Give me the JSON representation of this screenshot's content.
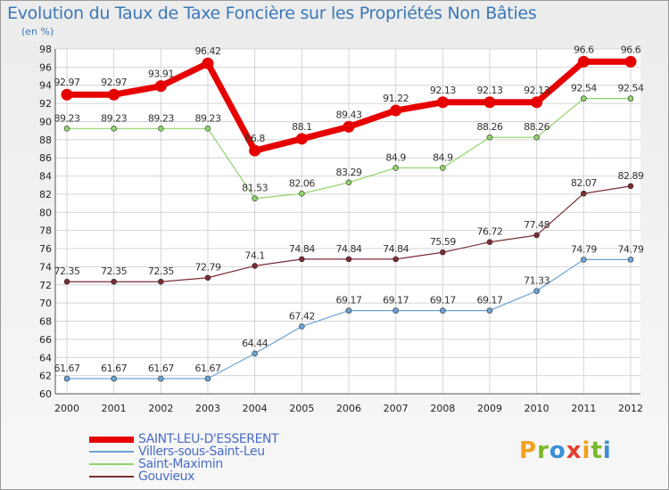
{
  "title": "Evolution du Taux de Taxe Foncière sur les Propriétés Non Bâties",
  "unit_label": "(en %)",
  "logo": {
    "letters": [
      "P",
      "r",
      "o",
      "x",
      "i",
      "t",
      "i"
    ],
    "colors": [
      "#f0a11d",
      "#79b829",
      "#3a8fd6",
      "#e63b2e",
      "#f0a11d",
      "#79b829",
      "#3a8fd6"
    ]
  },
  "chart_data": {
    "type": "line",
    "title": "Evolution du Taux de Taxe Foncière sur les Propriétés Non Bâties",
    "ylabel": "(en %)",
    "xlabel": "",
    "ylim": [
      60,
      98
    ],
    "yticks": [
      60,
      62,
      64,
      66,
      68,
      70,
      72,
      74,
      76,
      78,
      80,
      82,
      84,
      86,
      88,
      90,
      92,
      94,
      96,
      98
    ],
    "categories": [
      "2000",
      "2001",
      "2002",
      "2003",
      "2004",
      "2005",
      "2006",
      "2007",
      "2008",
      "2009",
      "2010",
      "2011",
      "2012"
    ],
    "grid": true,
    "legend_position": "bottom-left",
    "series": [
      {
        "name": "SAINT-LEU-D'ESSERENT",
        "color": "#e60000",
        "values": [
          92.97,
          92.97,
          93.91,
          96.42,
          86.8,
          88.1,
          89.43,
          91.22,
          92.13,
          92.13,
          92.13,
          96.6,
          96.6
        ],
        "labels": [
          "92.97",
          "92.97",
          "93.91",
          "96.42",
          "86.8",
          "88.1",
          "89.43",
          "91.22",
          "92.13",
          "92.13",
          "92.13",
          "96.6",
          "96.6"
        ]
      },
      {
        "name": "Villers-sous-Saint-Leu",
        "color": "#6aa3d5",
        "values": [
          61.67,
          61.67,
          61.67,
          61.67,
          64.44,
          67.42,
          69.17,
          69.17,
          69.17,
          69.17,
          71.33,
          74.79,
          74.79
        ],
        "labels": [
          "61.67",
          "61.67",
          "61.67",
          "61.67",
          "64.44",
          "67.42",
          "69.17",
          "69.17",
          "69.17",
          "69.17",
          "71.33",
          "74.79",
          "74.79"
        ]
      },
      {
        "name": "Saint-Maximin",
        "color": "#8fd36a",
        "values": [
          89.23,
          89.23,
          89.23,
          89.23,
          81.53,
          82.06,
          83.29,
          84.9,
          84.9,
          88.26,
          88.26,
          92.54,
          92.54
        ],
        "labels": [
          "89.23",
          "89.23",
          "89.23",
          "89.23",
          "81.53",
          "82.06",
          "83.29",
          "84.9",
          "84.9",
          "88.26",
          "88.26",
          "92.54",
          "92.54"
        ]
      },
      {
        "name": "Gouvieux",
        "color": "#7a2c33",
        "values": [
          72.35,
          72.35,
          72.35,
          72.79,
          74.1,
          74.84,
          74.84,
          74.84,
          75.59,
          76.72,
          77.48,
          82.07,
          82.89
        ],
        "labels": [
          "72.35",
          "72.35",
          "72.35",
          "72.79",
          "74.1",
          "74.84",
          "74.84",
          "74.84",
          "75.59",
          "76.72",
          "77.48",
          "82.07",
          "82.89"
        ]
      }
    ]
  }
}
